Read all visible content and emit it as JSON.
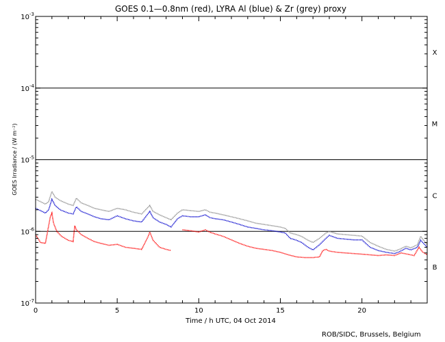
{
  "chart_data": {
    "type": "line",
    "title": "GOES 0.1—0.8nm (red), LYRA Al (blue) & Zr (grey) proxy",
    "xlabel": "Time / h UTC, 04 Oct 2014",
    "ylabel": "GOES Irradiance / (W m⁻²)",
    "y_scale": "log",
    "xlim": [
      0,
      24
    ],
    "ylim": [
      1e-07,
      0.001
    ],
    "x_ticks": [
      {
        "value": 0,
        "label": "0"
      },
      {
        "value": 5,
        "label": "5"
      },
      {
        "value": 10,
        "label": "10"
      },
      {
        "value": 15,
        "label": "15"
      },
      {
        "value": 20,
        "label": "20"
      }
    ],
    "y_ticks": [
      {
        "value": 1e-07,
        "base": "10",
        "exp": "-7"
      },
      {
        "value": 1e-06,
        "base": "10",
        "exp": "-6"
      },
      {
        "value": 1e-05,
        "base": "10",
        "exp": "-5"
      },
      {
        "value": 0.0001,
        "base": "10",
        "exp": "-4"
      },
      {
        "value": 0.001,
        "base": "10",
        "exp": "-3"
      }
    ],
    "class_lines": [
      1e-06,
      1e-05,
      0.0001
    ],
    "flare_classes": [
      {
        "label": "B",
        "value": 3.2e-07
      },
      {
        "label": "C",
        "value": 3.2e-06
      },
      {
        "label": "M",
        "value": 3.2e-05
      },
      {
        "label": "X",
        "value": 0.00032
      }
    ],
    "series": [
      {
        "color": "#ff0000",
        "x": [
          0,
          0.3,
          0.6,
          0.9,
          1.0,
          1.1,
          1.3,
          1.6,
          2.0,
          2.3,
          2.4,
          2.5,
          2.8,
          3.2,
          3.6,
          4.0,
          4.5,
          5.0,
          5.5,
          6.0,
          6.5,
          6.9,
          7.0,
          7.2,
          7.6,
          8.0,
          8.3,
          null,
          9.0,
          9.5,
          10.0,
          10.4,
          10.7,
          11.0,
          11.5,
          12.0,
          12.5,
          13.0,
          13.5,
          14.0,
          14.5,
          15.0,
          15.5,
          16.0,
          16.5,
          17.0,
          17.4,
          17.6,
          17.8,
          18.0,
          18.5,
          19.0,
          19.5,
          20.0,
          20.5,
          21.0,
          21.5,
          22.0,
          22.4,
          22.8,
          23.2,
          23.5,
          23.7,
          24.0
        ],
        "y": [
          9e-07,
          7e-07,
          6.8e-07,
          1.6e-06,
          1.8e-06,
          1.3e-06,
          1e-06,
          8.5e-07,
          7.5e-07,
          7.2e-07,
          1.2e-06,
          1.05e-06,
          9e-07,
          8e-07,
          7.2e-07,
          6.8e-07,
          6.4e-07,
          6.6e-07,
          6e-07,
          5.8e-07,
          5.6e-07,
          8.5e-07,
          9.8e-07,
          7.5e-07,
          6e-07,
          5.6e-07,
          5.4e-07,
          null,
          1.05e-06,
          1.02e-06,
          9.8e-07,
          1.05e-06,
          9.7e-07,
          9.2e-07,
          8.5e-07,
          7.6e-07,
          6.8e-07,
          6.2e-07,
          5.8e-07,
          5.6e-07,
          5.4e-07,
          5.1e-07,
          4.7e-07,
          4.4e-07,
          4.3e-07,
          4.3e-07,
          4.4e-07,
          5.4e-07,
          5.6e-07,
          5.3e-07,
          5.1e-07,
          5e-07,
          4.9e-07,
          4.8e-07,
          4.7e-07,
          4.6e-07,
          4.7e-07,
          4.6e-07,
          5e-07,
          4.8e-07,
          4.6e-07,
          6e-07,
          5.2e-07,
          4.7e-07
        ]
      },
      {
        "color": "#0000cc",
        "x": [
          0,
          0.3,
          0.6,
          0.8,
          1.0,
          1.2,
          1.5,
          2.0,
          2.3,
          2.5,
          2.8,
          3.2,
          3.6,
          4.0,
          4.5,
          5.0,
          5.5,
          6.0,
          6.5,
          7.0,
          7.2,
          7.6,
          8.0,
          8.3,
          8.7,
          9.0,
          9.5,
          10.0,
          10.4,
          10.7,
          11.0,
          11.5,
          12.0,
          12.5,
          13.0,
          13.5,
          14.0,
          14.5,
          15.0,
          15.3,
          15.6,
          16.0,
          16.3,
          16.7,
          17.0,
          17.4,
          17.8,
          18.0,
          18.5,
          19.0,
          19.5,
          20.0,
          20.5,
          21.0,
          21.5,
          22.0,
          22.3,
          22.7,
          23.0,
          23.4,
          23.6,
          24.0
        ],
        "y": [
          2.1e-06,
          1.95e-06,
          1.8e-06,
          2e-06,
          2.8e-06,
          2.3e-06,
          2e-06,
          1.8e-06,
          1.75e-06,
          2.2e-06,
          1.9e-06,
          1.75e-06,
          1.6e-06,
          1.5e-06,
          1.45e-06,
          1.65e-06,
          1.5e-06,
          1.4e-06,
          1.35e-06,
          1.9e-06,
          1.55e-06,
          1.35e-06,
          1.25e-06,
          1.15e-06,
          1.5e-06,
          1.65e-06,
          1.6e-06,
          1.6e-06,
          1.7e-06,
          1.55e-06,
          1.5e-06,
          1.45e-06,
          1.35e-06,
          1.25e-06,
          1.15e-06,
          1.1e-06,
          1.05e-06,
          1.02e-06,
          9.8e-07,
          9.5e-07,
          8e-07,
          7.5e-07,
          7e-07,
          6e-07,
          5.5e-07,
          6.5e-07,
          8e-07,
          8.8e-07,
          8e-07,
          7.8e-07,
          7.6e-07,
          7.6e-07,
          6e-07,
          5.4e-07,
          5.1e-07,
          4.9e-07,
          5.2e-07,
          5.8e-07,
          5.5e-07,
          6e-07,
          7.5e-07,
          6e-07
        ]
      },
      {
        "color": "#888888",
        "x": [
          0,
          0.3,
          0.6,
          0.8,
          1.0,
          1.2,
          1.5,
          2.0,
          2.3,
          2.5,
          2.8,
          3.2,
          3.6,
          4.0,
          4.5,
          5.0,
          5.5,
          6.0,
          6.5,
          7.0,
          7.2,
          7.6,
          8.0,
          8.3,
          8.7,
          9.0,
          9.5,
          10.0,
          10.4,
          10.7,
          11.0,
          11.5,
          12.0,
          12.5,
          13.0,
          13.5,
          14.0,
          14.5,
          15.0,
          15.3,
          15.6,
          16.0,
          16.3,
          16.7,
          17.0,
          17.4,
          17.8,
          18.0,
          18.5,
          19.0,
          19.5,
          20.0,
          20.5,
          21.0,
          21.5,
          22.0,
          22.3,
          22.7,
          23.0,
          23.4,
          23.6,
          24.0
        ],
        "y": [
          2.8e-06,
          2.6e-06,
          2.4e-06,
          2.6e-06,
          3.6e-06,
          3e-06,
          2.7e-06,
          2.4e-06,
          2.3e-06,
          2.9e-06,
          2.5e-06,
          2.3e-06,
          2.1e-06,
          2e-06,
          1.9e-06,
          2.1e-06,
          2e-06,
          1.85e-06,
          1.75e-06,
          2.3e-06,
          1.9e-06,
          1.7e-06,
          1.55e-06,
          1.45e-06,
          1.8e-06,
          2e-06,
          1.95e-06,
          1.9e-06,
          2e-06,
          1.85e-06,
          1.8e-06,
          1.7e-06,
          1.6e-06,
          1.5e-06,
          1.4e-06,
          1.3e-06,
          1.25e-06,
          1.2e-06,
          1.15e-06,
          1.1e-06,
          9.5e-07,
          9e-07,
          8.5e-07,
          7.5e-07,
          7e-07,
          8e-07,
          9.5e-07,
          1e-06,
          9.2e-07,
          9e-07,
          8.8e-07,
          8.6e-07,
          7e-07,
          6.2e-07,
          5.6e-07,
          5.3e-07,
          5.6e-07,
          6.2e-07,
          5.9e-07,
          6.5e-07,
          8.5e-07,
          6.5e-07
        ]
      }
    ],
    "credit": "ROB/SIDC, Brussels, Belgium"
  }
}
